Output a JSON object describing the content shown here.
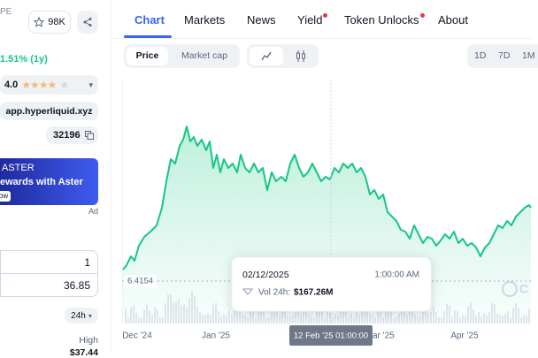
{
  "header": {
    "name_fragment": "PE",
    "watchlist_count": "98K"
  },
  "price_change": "1.51% (1y)",
  "rating": "4.0",
  "website": "app.hyperliquid.xyz",
  "contract": "32196",
  "ad": {
    "brand": "ASTER",
    "headline": "ewards with Aster",
    "button": "ow",
    "label": "Ad"
  },
  "converter": {
    "amount": "1",
    "result": "36.85"
  },
  "range_select": "24h",
  "high": {
    "label": "High",
    "value": "$37.44"
  },
  "tabs": [
    "Chart",
    "Markets",
    "News",
    "Yield",
    "Token Unlocks",
    "About"
  ],
  "chart_controls": {
    "modes": [
      "Price",
      "Market cap"
    ],
    "ranges": [
      "1D",
      "7D",
      "1M"
    ]
  },
  "chart": {
    "reference_price": "6.4154",
    "x_labels": [
      "Dec '24",
      "Jan '25",
      "ar '25",
      "Apr '25"
    ],
    "crosshair_label": "12 Feb '25 01:00:00",
    "watermark": "C",
    "tooltip": {
      "date": "02/12/2025",
      "time": "1:00:00 AM",
      "volume_label": "Vol 24h:",
      "volume": "$167.26M"
    }
  }
}
